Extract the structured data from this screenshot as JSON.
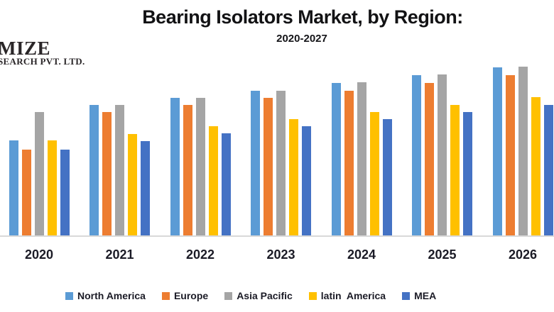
{
  "header": {
    "title": "Bearing Isolators Market, by Region:",
    "subtitle": "2020-2027"
  },
  "logo": {
    "line1": "MIZE",
    "line2": "SEARCH PVT. LTD.",
    "note": "brand logo cropped at left edge of image"
  },
  "chart_data": {
    "type": "bar",
    "title": "Bearing Isolators Market, by Region:",
    "subtitle": "2020-2027",
    "categories": [
      "2020",
      "2021",
      "2022",
      "2023",
      "2024",
      "2025",
      "2026"
    ],
    "series": [
      {
        "name": "North America",
        "color": "#5B9BD5",
        "values": [
          134,
          184,
          194,
          204,
          215,
          226,
          237
        ]
      },
      {
        "name": "Europe",
        "color": "#ED7D31",
        "values": [
          121,
          174,
          184,
          194,
          204,
          215,
          226
        ]
      },
      {
        "name": "Asia Pacific",
        "color": "#A5A5A5",
        "values": [
          174,
          184,
          194,
          204,
          216,
          227,
          238
        ]
      },
      {
        "name": "latin  America",
        "color": "#FFC000",
        "values": [
          134,
          143,
          154,
          164,
          174,
          184,
          195
        ]
      },
      {
        "name": "MEA",
        "color": "#4472C4",
        "values": [
          121,
          133,
          144,
          154,
          164,
          174,
          184
        ]
      }
    ],
    "xlabel": "",
    "ylabel": "",
    "value_units": "relative bar height (no value axis shown in chart)",
    "ylim": [
      0,
      260
    ],
    "grid": false,
    "legend_position": "bottom",
    "axis_line_color": "#d9d9d9",
    "notes": "x-axis runs 2020-2026 visible; 2027 cropped off right edge of image"
  }
}
